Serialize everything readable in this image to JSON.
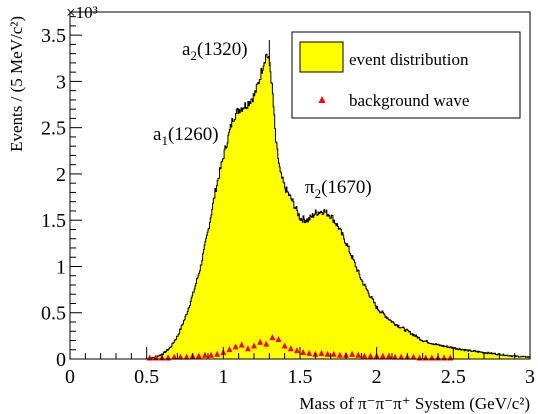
{
  "chart_data": {
    "type": "area",
    "xlabel": "Mass of π⁻π⁻π⁺ System (GeV/c²)",
    "ylabel": "Events / (5 MeV/c²)",
    "y_multiplier_label": "×10³",
    "xlim": [
      0,
      3
    ],
    "ylim": [
      0,
      3.75
    ],
    "x_ticks": [
      0,
      0.5,
      1,
      1.5,
      2,
      2.5,
      3
    ],
    "x_tick_labels": [
      "0",
      "0.5",
      "1",
      "1.5",
      "2",
      "2.5",
      "3"
    ],
    "y_ticks": [
      0,
      0.5,
      1,
      1.5,
      2,
      2.5,
      3,
      3.5
    ],
    "y_tick_labels": [
      "0",
      "0.5",
      "1",
      "1.5",
      "2",
      "2.5",
      "3",
      "3.5"
    ],
    "legend_position": "top-right",
    "legend_items": [
      {
        "label": "event distribution",
        "symbol": "box",
        "color": "#ffff00"
      },
      {
        "label": "background wave",
        "symbol": "triangle",
        "color": "#ff0000"
      }
    ],
    "series": [
      {
        "name": "event distribution",
        "style": "filled-histogram",
        "fill": "#ffff00",
        "stroke": "#000000",
        "x": [
          0.5,
          0.55,
          0.6,
          0.65,
          0.7,
          0.75,
          0.8,
          0.85,
          0.9,
          0.95,
          1.0,
          1.03,
          1.06,
          1.1,
          1.15,
          1.2,
          1.23,
          1.26,
          1.28,
          1.3,
          1.32,
          1.34,
          1.37,
          1.4,
          1.45,
          1.5,
          1.55,
          1.6,
          1.65,
          1.7,
          1.75,
          1.8,
          1.85,
          1.9,
          1.95,
          2.0,
          2.1,
          2.2,
          2.3,
          2.4,
          2.5,
          2.6,
          2.7,
          2.8,
          2.9,
          3.0
        ],
        "y": [
          0.0,
          0.02,
          0.05,
          0.12,
          0.25,
          0.45,
          0.7,
          1.0,
          1.4,
          1.85,
          2.2,
          2.4,
          2.6,
          2.7,
          2.75,
          2.85,
          3.0,
          3.2,
          3.3,
          3.2,
          2.85,
          2.35,
          2.0,
          1.85,
          1.7,
          1.52,
          1.5,
          1.58,
          1.6,
          1.55,
          1.42,
          1.25,
          1.05,
          0.85,
          0.7,
          0.55,
          0.4,
          0.3,
          0.2,
          0.15,
          0.12,
          0.09,
          0.07,
          0.05,
          0.03,
          0.02
        ]
      },
      {
        "name": "background wave",
        "style": "markers",
        "color": "#ff0000",
        "x": [
          0.52,
          0.56,
          0.6,
          0.64,
          0.68,
          0.72,
          0.76,
          0.8,
          0.84,
          0.88,
          0.92,
          0.96,
          1.0,
          1.04,
          1.08,
          1.12,
          1.16,
          1.2,
          1.24,
          1.28,
          1.32,
          1.36,
          1.4,
          1.44,
          1.48,
          1.52,
          1.56,
          1.6,
          1.64,
          1.68,
          1.72,
          1.76,
          1.8,
          1.84,
          1.88,
          1.92,
          1.96,
          2.0,
          2.04,
          2.08,
          2.12,
          2.16,
          2.2,
          2.24,
          2.28,
          2.32,
          2.36,
          2.4,
          2.44,
          2.48
        ],
        "y": [
          0.0,
          0.0,
          0.0,
          0.0,
          0.01,
          0.01,
          0.01,
          0.02,
          0.02,
          0.03,
          0.03,
          0.04,
          0.06,
          0.09,
          0.12,
          0.14,
          0.1,
          0.13,
          0.17,
          0.15,
          0.22,
          0.2,
          0.13,
          0.1,
          0.08,
          0.06,
          0.05,
          0.04,
          0.05,
          0.04,
          0.04,
          0.03,
          0.03,
          0.04,
          0.03,
          0.02,
          0.02,
          0.02,
          0.02,
          0.02,
          0.01,
          0.01,
          0.01,
          0.01,
          0.0,
          0.0,
          0.0,
          0.0,
          0.0,
          0.0
        ]
      }
    ],
    "annotations": [
      {
        "base": "a",
        "sub": "2",
        "rest": "(1320)",
        "at_x": 1.3,
        "at_y": 3.3
      },
      {
        "base": "a",
        "sub": "1",
        "rest": "(1260)",
        "at_x": 1.1,
        "at_y": 2.7
      },
      {
        "base": "π",
        "sub": "2",
        "rest": "(1670)",
        "at_x": 1.65,
        "at_y": 1.62
      }
    ]
  }
}
